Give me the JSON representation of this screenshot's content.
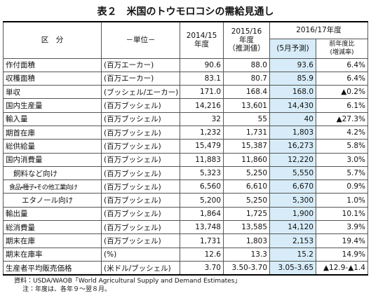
{
  "title": "表２　米国のトウモロコシの需給見通し",
  "table": {
    "header": {
      "category": "区　分",
      "unit": "－単位－",
      "col1": "2014/15\n年度",
      "col2": "2015/16\n年度\n（推測値）",
      "col3_group": "2016/17年度",
      "col3": "(5月予測)",
      "col4": "前年度比\n(増減率)"
    },
    "rows": [
      [
        "作付面積",
        "(百万エーカー)",
        "90.6",
        "88.0",
        "93.6",
        "6.4%"
      ],
      [
        "収穫面積",
        "(百万エーカー)",
        "83.1",
        "80.7",
        "85.9",
        "6.4%"
      ],
      [
        "単収",
        "(ブッシェル/エーカー)",
        "171.0",
        "168.4",
        "168.0",
        "▲0.2%"
      ],
      [
        "国内生産量",
        "(百万ブッシェル)",
        "14,216",
        "13,601",
        "14,430",
        "6.1%"
      ],
      [
        "輸入量",
        "(百万ブッシェル)",
        "32",
        "55",
        "40",
        "▲27.3%"
      ],
      [
        "期首在庫",
        "(百万ブッシェル)",
        "1,232",
        "1,731",
        "1,803",
        "4.2%"
      ],
      [
        "総供給量",
        "(百万ブッシェル)",
        "15,479",
        "15,387",
        "16,273",
        "5.8%"
      ],
      [
        "国内消費量",
        "(百万ブッシェル)",
        "11,883",
        "11,860",
        "12,220",
        "3.0%"
      ],
      [
        "飼料など向け",
        "(百万ブッシェル)",
        "5,323",
        "5,250",
        "5,550",
        "5.7%"
      ],
      [
        "食品・種子・その他工業向け",
        "(百万ブッシェル)",
        "6,560",
        "6,610",
        "6,670",
        "0.9%"
      ],
      [
        "エタノール向け",
        "(百万ブッシェル)",
        "5,200",
        "5,250",
        "5,300",
        "1.0%"
      ],
      [
        "輸出量",
        "(百万ブッシェル)",
        "1,864",
        "1,725",
        "1,900",
        "10.1%"
      ],
      [
        "総消費量",
        "(百万ブッシェル)",
        "13,748",
        "13,585",
        "14,120",
        "3.9%"
      ],
      [
        "期末在庫",
        "(百万ブッシェル)",
        "1,731",
        "1,803",
        "2,153",
        "19.4%"
      ],
      [
        "期末在庫率",
        "(%)",
        "12.6",
        "13.3",
        "15.2",
        "14.9%"
      ],
      [
        "生産者平均販売価格",
        "(米ドル/ブッシェル)",
        "3.70",
        "3.50-3.70",
        "3.05-3.65",
        "▲12.9-▲1.4"
      ]
    ]
  },
  "notes": [
    "資料：USDA/WAOB「World Agricultural Supply and Demand Estimates」",
    "注：年度は、各年９～翌８月。"
  ]
}
